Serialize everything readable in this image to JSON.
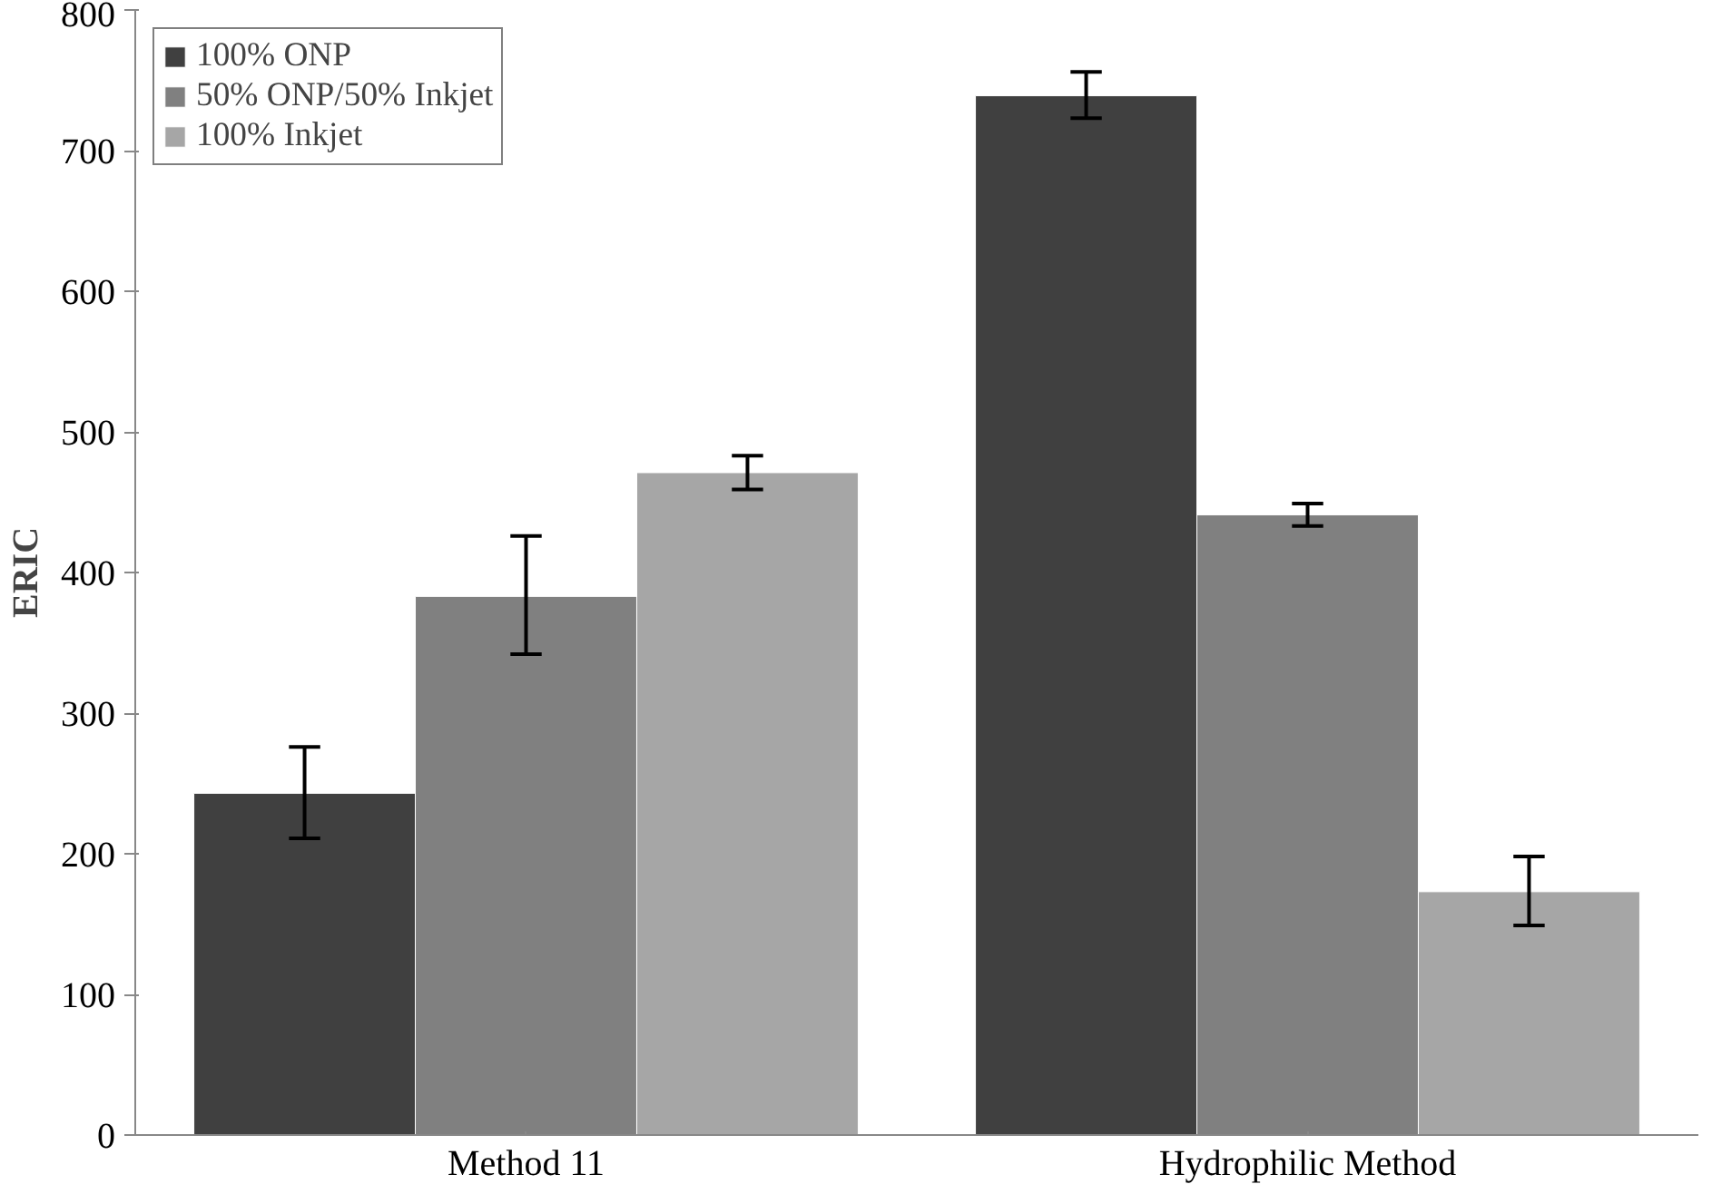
{
  "chart_data": {
    "type": "bar",
    "ylabel": "ERIC",
    "categories": [
      "Method 11",
      "Hydrophilic Method"
    ],
    "series": [
      {
        "name": "100% ONP",
        "color": "#404040",
        "values": [
          243,
          739
        ],
        "errors": [
          [
            211,
            276
          ],
          [
            723,
            756
          ]
        ]
      },
      {
        "name": "50% ONP/50% Inkjet",
        "color": "#808080",
        "values": [
          383,
          441
        ],
        "errors": [
          [
            342,
            426
          ],
          [
            433,
            449
          ]
        ]
      },
      {
        "name": "100% Inkjet",
        "color": "#a6a6a6",
        "values": [
          471,
          173
        ],
        "errors": [
          [
            459,
            483
          ],
          [
            149,
            198
          ]
        ]
      }
    ],
    "ylim": [
      0,
      800
    ],
    "yticks": [
      0,
      100,
      200,
      300,
      400,
      500,
      600,
      700,
      800
    ],
    "grid": false,
    "legend": "top left"
  }
}
